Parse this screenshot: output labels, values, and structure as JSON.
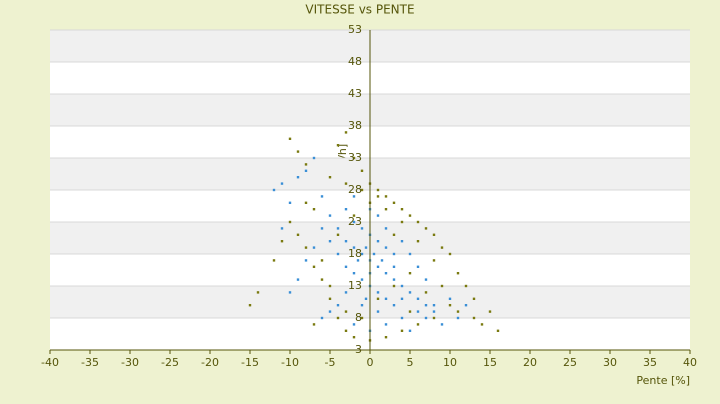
{
  "chart_data": {
    "type": "scatter",
    "title": "VITESSE vs PENTE",
    "x_label": "Pente [%]",
    "y_label": "[km/h]",
    "xlim": [
      -40,
      40
    ],
    "xticks": [
      -40,
      -35,
      -30,
      -25,
      -20,
      -15,
      -10,
      -5,
      0,
      5,
      10,
      15,
      20,
      25,
      30,
      35,
      40
    ],
    "ylim": [
      3,
      53
    ],
    "yticks": [
      3,
      8,
      13,
      18,
      23,
      28,
      33,
      38,
      43,
      48,
      53
    ],
    "grid": true,
    "series": [
      {
        "color": "#7a7a10",
        "x": [
          -10,
          -9,
          -8,
          -3,
          -4,
          -2,
          -1,
          0,
          1,
          2,
          3,
          4,
          5,
          6,
          7,
          8,
          9,
          10,
          11,
          12,
          13,
          15,
          16,
          14,
          -15,
          -14,
          -12,
          -11,
          -10,
          -9,
          -8,
          -7,
          -6,
          -5,
          -4,
          -3,
          -2,
          0,
          2,
          4,
          6,
          8,
          10,
          9,
          7,
          5,
          3,
          1,
          -1,
          -3,
          -5,
          -6,
          -4,
          -2,
          0,
          2,
          4,
          6,
          8,
          -1,
          1,
          -3,
          -5,
          -7,
          3,
          5,
          -7,
          11,
          13,
          -8
        ],
        "values": [
          36,
          34,
          32,
          37,
          35,
          33,
          31,
          29,
          28,
          27,
          26,
          25,
          24,
          23,
          22,
          21,
          19,
          18,
          15,
          13,
          11,
          9,
          6,
          7,
          10,
          12,
          17,
          20,
          23,
          21,
          19,
          16,
          14,
          11,
          8,
          6,
          5,
          4.5,
          5,
          6,
          7,
          8,
          10,
          13,
          12,
          15,
          13,
          11,
          8,
          9,
          13,
          17,
          21,
          24,
          26,
          25,
          23,
          20,
          17,
          28,
          27,
          29,
          30,
          25,
          21,
          9,
          7,
          9,
          8,
          26
        ]
      },
      {
        "color": "#3a8fd6",
        "x": [
          -11,
          -10,
          -9,
          -8,
          -7,
          -6,
          -5,
          -4,
          -3,
          -2,
          -1,
          0,
          1,
          2,
          3,
          4,
          5,
          6,
          7,
          8,
          -1,
          0,
          1,
          2,
          3,
          -2,
          -1,
          0,
          1,
          2,
          -3,
          -4,
          -5,
          -6,
          -2,
          0,
          2,
          4,
          6,
          8,
          10,
          11,
          9,
          7,
          5,
          3,
          1,
          -1,
          -3,
          -4,
          -5,
          -6,
          -7,
          -8,
          -9,
          -10,
          -11,
          -12,
          -3,
          -2,
          0,
          1,
          2,
          4,
          5,
          6,
          7,
          0.5,
          -0.5,
          1.5,
          -1.5,
          0,
          3,
          -2,
          -0.5,
          4,
          12
        ],
        "values": [
          29,
          26,
          30,
          31,
          33,
          27,
          24,
          22,
          20,
          19,
          18,
          17,
          16,
          15,
          14,
          13,
          12,
          11,
          10,
          9,
          22,
          21,
          20,
          19,
          18,
          15,
          14,
          13,
          12,
          11,
          12,
          10,
          9,
          8,
          7,
          6,
          7,
          8,
          9,
          10,
          11,
          8,
          7,
          8,
          6,
          10,
          9,
          10,
          16,
          18,
          20,
          22,
          19,
          17,
          14,
          12,
          22,
          28,
          25,
          27,
          25,
          24,
          22,
          20,
          18,
          16,
          14,
          18,
          19,
          17,
          17,
          15,
          16,
          23,
          11,
          11,
          10
        ]
      }
    ]
  }
}
